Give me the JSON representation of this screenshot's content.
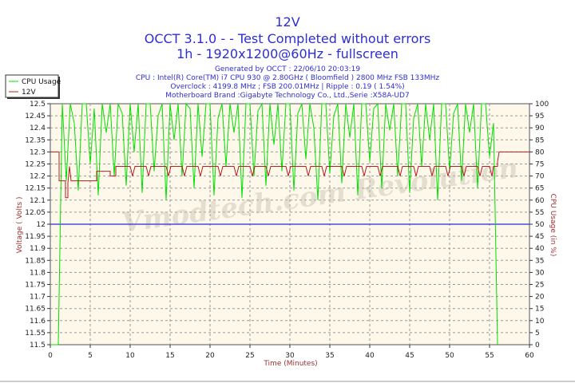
{
  "header": {
    "title": "12V",
    "line2": "OCCT 3.1.0 -  - Test Completed without errors",
    "line3": "1h - 1920x1200@60Hz - fullscreen",
    "info": [
      "Generated by OCCT : 22/06/10 20:03:19",
      "CPU : Intel(R) Core(TM) i7 CPU 930 @ 2.80GHz ( Bloomfield ) 2800 MHz FSB 133MHz",
      "Overclock : 4199.8 MHz ; FSB 200.01MHz | Ripple : 0.19 ( 1.54%)",
      "Motherboard Brand :Gigabyte Technology Co., Ltd.,Serie :X58A-UD7"
    ]
  },
  "watermark": "Vmodtech.com Revolution",
  "colors": {
    "cpu": "#00e000",
    "voltage": "#b02020",
    "reference": "#4a4ae0",
    "plot_bg": "#fdf8ea",
    "title": "#2e2ed0",
    "axis_label": "#a03030"
  },
  "chart_data": {
    "type": "line",
    "xlabel": "Time (Minutes)",
    "ylabel": "Voltage ( Volts )",
    "y2label": "CPU Usage (in %)",
    "xlim": [
      0,
      60
    ],
    "ylim": [
      11.5,
      12.5
    ],
    "y2lim": [
      0,
      100
    ],
    "xticks": [
      "0",
      "5",
      "10",
      "15",
      "20",
      "25",
      "30",
      "35",
      "40",
      "45",
      "50",
      "55",
      "60"
    ],
    "yticks": [
      "12.5",
      "12.45",
      "12.4",
      "12.35",
      "12.3",
      "12.25",
      "12.2",
      "12.15",
      "12.1",
      "12.05",
      "12",
      "11.95",
      "11.9",
      "11.85",
      "11.8",
      "11.75",
      "11.7",
      "11.65",
      "11.6",
      "11.55",
      "11.5"
    ],
    "y2ticks": [
      "100",
      "95",
      "90",
      "85",
      "80",
      "75",
      "70",
      "65",
      "60",
      "55",
      "50",
      "45",
      "40",
      "35",
      "30",
      "25",
      "20",
      "15",
      "10",
      "5",
      "0"
    ],
    "grid": true,
    "legend_position": "top-left",
    "reference_line": {
      "axis": "y",
      "value": 12
    },
    "series": [
      {
        "name": "CPU Usage",
        "axis": "right",
        "points": [
          [
            0,
            0
          ],
          [
            0.5,
            0
          ],
          [
            1,
            0
          ],
          [
            1.5,
            100
          ],
          [
            2,
            68
          ],
          [
            2.5,
            100
          ],
          [
            3,
            92
          ],
          [
            3.5,
            64
          ],
          [
            4,
            100
          ],
          [
            4.5,
            100
          ],
          [
            5,
            75
          ],
          [
            5.5,
            98
          ],
          [
            6,
            62
          ],
          [
            6.5,
            100
          ],
          [
            7,
            88
          ],
          [
            7.5,
            100
          ],
          [
            8,
            70
          ],
          [
            8.5,
            100
          ],
          [
            9,
            96
          ],
          [
            9.5,
            66
          ],
          [
            10,
            100
          ],
          [
            10.5,
            80
          ],
          [
            11,
            100
          ],
          [
            11.5,
            63
          ],
          [
            12,
            100
          ],
          [
            12.5,
            100
          ],
          [
            13,
            72
          ],
          [
            13.5,
            95
          ],
          [
            14,
            100
          ],
          [
            14.5,
            60
          ],
          [
            15,
            100
          ],
          [
            15.5,
            85
          ],
          [
            16,
            100
          ],
          [
            16.5,
            70
          ],
          [
            17,
            100
          ],
          [
            17.5,
            98
          ],
          [
            18,
            65
          ],
          [
            18.5,
            100
          ],
          [
            19,
            78
          ],
          [
            19.5,
            100
          ],
          [
            20,
            100
          ],
          [
            20.5,
            62
          ],
          [
            21,
            94
          ],
          [
            21.5,
            100
          ],
          [
            22,
            74
          ],
          [
            22.5,
            100
          ],
          [
            23,
            88
          ],
          [
            23.5,
            100
          ],
          [
            24,
            61
          ],
          [
            24.5,
            100
          ],
          [
            25,
            100
          ],
          [
            25.5,
            70
          ],
          [
            26,
            97
          ],
          [
            26.5,
            100
          ],
          [
            27,
            66
          ],
          [
            27.5,
            100
          ],
          [
            28,
            83
          ],
          [
            28.5,
            100
          ],
          [
            29,
            72
          ],
          [
            29.5,
            100
          ],
          [
            30,
            100
          ],
          [
            30.5,
            64
          ],
          [
            31,
            96
          ],
          [
            31.5,
            100
          ],
          [
            32,
            77
          ],
          [
            32.5,
            100
          ],
          [
            33,
            90
          ],
          [
            33.5,
            60
          ],
          [
            34,
            100
          ],
          [
            34.5,
            100
          ],
          [
            35,
            71
          ],
          [
            35.5,
            95
          ],
          [
            36,
            100
          ],
          [
            36.5,
            67
          ],
          [
            37,
            100
          ],
          [
            37.5,
            86
          ],
          [
            38,
            100
          ],
          [
            38.5,
            62
          ],
          [
            39,
            100
          ],
          [
            39.5,
            100
          ],
          [
            40,
            76
          ],
          [
            40.5,
            98
          ],
          [
            41,
            100
          ],
          [
            41.5,
            65
          ],
          [
            42,
            100
          ],
          [
            42.5,
            89
          ],
          [
            43,
            100
          ],
          [
            43.5,
            70
          ],
          [
            44,
            100
          ],
          [
            44.5,
            100
          ],
          [
            45,
            63
          ],
          [
            45.5,
            94
          ],
          [
            46,
            100
          ],
          [
            46.5,
            74
          ],
          [
            47,
            100
          ],
          [
            47.5,
            85
          ],
          [
            48,
            100
          ],
          [
            48.5,
            60
          ],
          [
            49,
            100
          ],
          [
            49.5,
            100
          ],
          [
            50,
            72
          ],
          [
            50.5,
            96
          ],
          [
            51,
            100
          ],
          [
            51.5,
            68
          ],
          [
            52,
            100
          ],
          [
            52.5,
            88
          ],
          [
            53,
            100
          ],
          [
            53.5,
            65
          ],
          [
            54,
            100
          ],
          [
            54.5,
            100
          ],
          [
            55,
            78
          ],
          [
            55.5,
            92
          ],
          [
            56,
            0
          ]
        ]
      },
      {
        "name": "12V",
        "axis": "left",
        "points": [
          [
            0,
            12.3
          ],
          [
            1.1,
            12.3
          ],
          [
            1.1,
            12.18
          ],
          [
            1.9,
            12.18
          ],
          [
            1.9,
            12.11
          ],
          [
            2.2,
            12.11
          ],
          [
            2.2,
            12.17
          ],
          [
            2.4,
            12.24
          ],
          [
            2.6,
            12.18
          ],
          [
            5.8,
            12.18
          ],
          [
            5.8,
            12.22
          ],
          [
            7.5,
            12.22
          ],
          [
            7.5,
            12.2
          ],
          [
            8.2,
            12.2
          ],
          [
            8.2,
            12.24
          ],
          [
            10,
            12.24
          ],
          [
            10.3,
            12.2
          ],
          [
            10.6,
            12.24
          ],
          [
            12,
            12.24
          ],
          [
            12.3,
            12.2
          ],
          [
            12.6,
            12.24
          ],
          [
            14.5,
            12.24
          ],
          [
            14.8,
            12.2
          ],
          [
            15.1,
            12.24
          ],
          [
            16.5,
            12.24
          ],
          [
            16.8,
            12.2
          ],
          [
            17.1,
            12.24
          ],
          [
            18.5,
            12.24
          ],
          [
            18.8,
            12.2
          ],
          [
            19.1,
            12.24
          ],
          [
            21,
            12.24
          ],
          [
            21.3,
            12.2
          ],
          [
            21.6,
            12.24
          ],
          [
            23,
            12.24
          ],
          [
            23.3,
            12.2
          ],
          [
            23.6,
            12.24
          ],
          [
            25,
            12.24
          ],
          [
            25.3,
            12.2
          ],
          [
            25.6,
            12.24
          ],
          [
            27,
            12.24
          ],
          [
            27.3,
            12.2
          ],
          [
            27.6,
            12.24
          ],
          [
            29.5,
            12.24
          ],
          [
            29.8,
            12.2
          ],
          [
            30.1,
            12.24
          ],
          [
            32,
            12.24
          ],
          [
            32.3,
            12.2
          ],
          [
            32.6,
            12.24
          ],
          [
            34,
            12.24
          ],
          [
            34.3,
            12.2
          ],
          [
            34.6,
            12.24
          ],
          [
            36.5,
            12.24
          ],
          [
            36.8,
            12.2
          ],
          [
            37.1,
            12.24
          ],
          [
            39,
            12.24
          ],
          [
            39.3,
            12.2
          ],
          [
            39.6,
            12.24
          ],
          [
            41,
            12.24
          ],
          [
            41.3,
            12.2
          ],
          [
            41.6,
            12.24
          ],
          [
            43.5,
            12.24
          ],
          [
            43.8,
            12.2
          ],
          [
            44.1,
            12.24
          ],
          [
            45.5,
            12.24
          ],
          [
            45.8,
            12.2
          ],
          [
            46.1,
            12.24
          ],
          [
            47.5,
            12.24
          ],
          [
            47.8,
            12.2
          ],
          [
            48.1,
            12.24
          ],
          [
            49.5,
            12.24
          ],
          [
            49.8,
            12.2
          ],
          [
            50.1,
            12.24
          ],
          [
            51.5,
            12.24
          ],
          [
            51.8,
            12.2
          ],
          [
            52.1,
            12.24
          ],
          [
            53.5,
            12.24
          ],
          [
            53.8,
            12.2
          ],
          [
            54.1,
            12.24
          ],
          [
            55,
            12.24
          ],
          [
            55.3,
            12.2
          ],
          [
            55.5,
            12.24
          ],
          [
            56,
            12.24
          ],
          [
            56,
            12.26
          ],
          [
            56.2,
            12.3
          ],
          [
            60,
            12.3
          ]
        ]
      }
    ]
  }
}
